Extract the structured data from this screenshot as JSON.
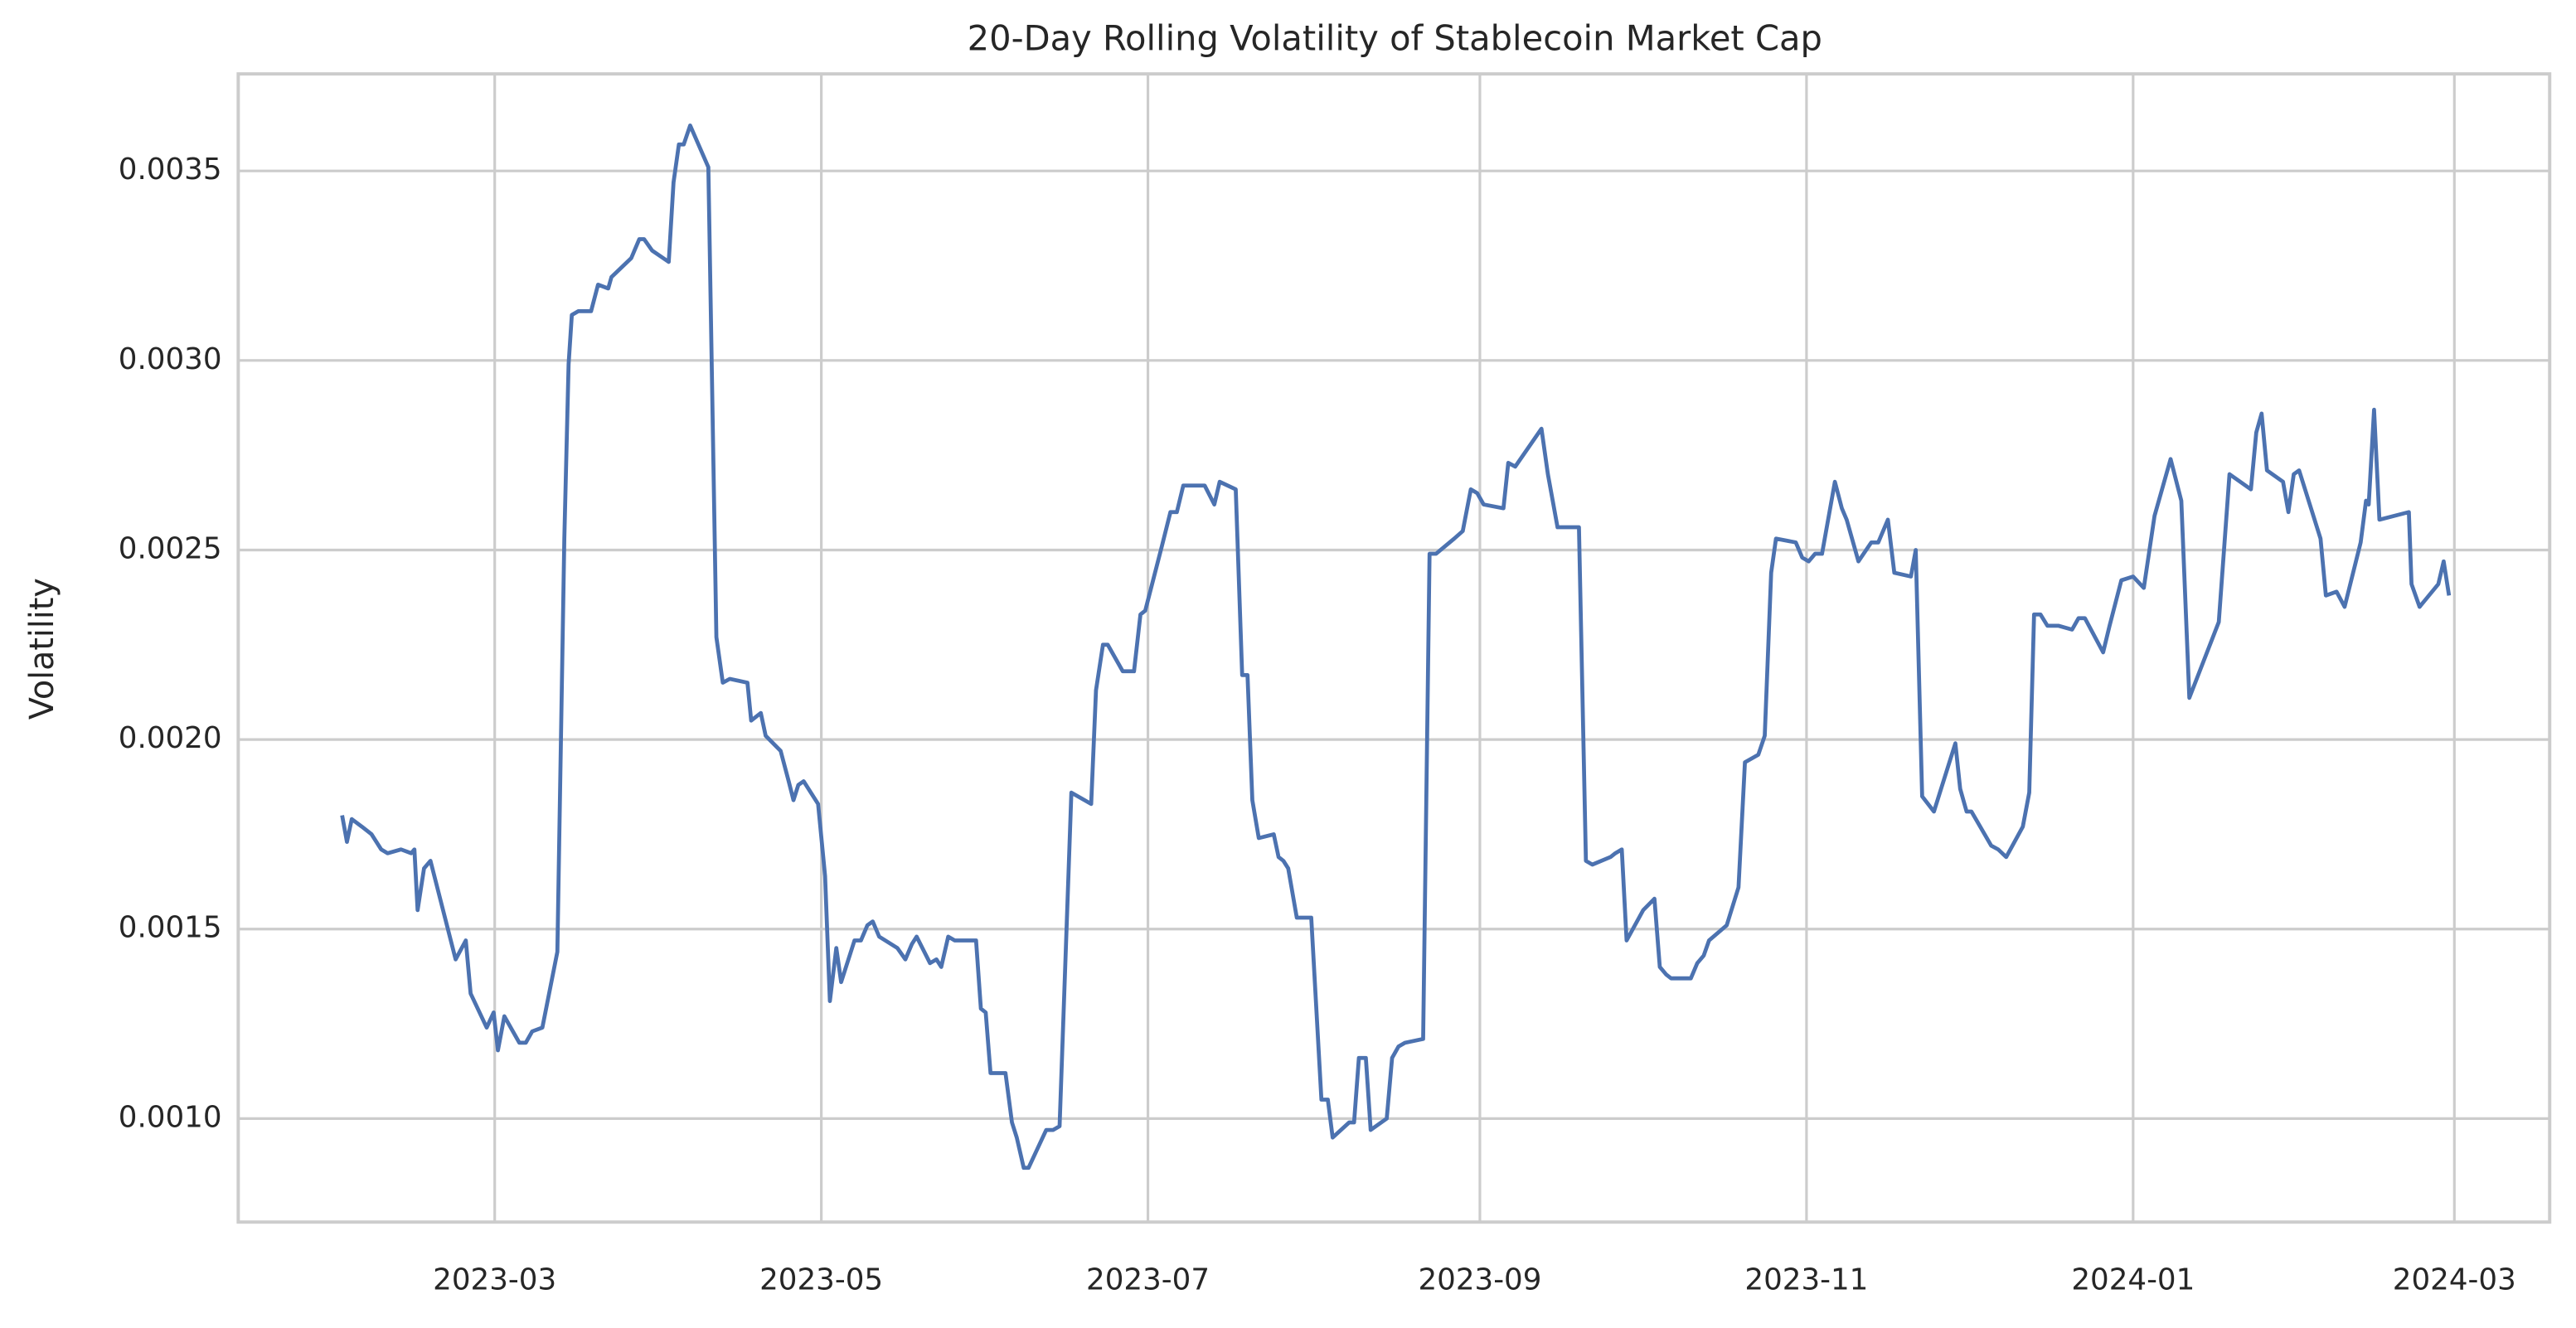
{
  "chart_data": {
    "type": "line",
    "title": "20-Day Rolling Volatility of Stablecoin Market Cap",
    "y_label": "Volatility",
    "color": "#4c72b0",
    "grid": true,
    "xlim": [
      11.1,
      442.8
    ],
    "ylim": [
      0.000727,
      0.003756
    ],
    "xticks": [
      {
        "value": 59,
        "label": "2023-03"
      },
      {
        "value": 120,
        "label": "2023-05"
      },
      {
        "value": 181,
        "label": "2023-07"
      },
      {
        "value": 243,
        "label": "2023-09"
      },
      {
        "value": 304,
        "label": "2023-11"
      },
      {
        "value": 365,
        "label": "2024-01"
      },
      {
        "value": 425,
        "label": "2024-03"
      }
    ],
    "yticks": [
      {
        "value": 0.001,
        "label": "0.0010"
      },
      {
        "value": 0.0015,
        "label": "0.0015"
      },
      {
        "value": 0.002,
        "label": "0.0020"
      },
      {
        "value": 0.0025,
        "label": "0.0025"
      },
      {
        "value": 0.003,
        "label": "0.0030"
      },
      {
        "value": 0.0035,
        "label": "0.0035"
      }
    ],
    "x": [
      30.5,
      31.4,
      32.3,
      34.2,
      36,
      37.8,
      39,
      41.5,
      43.4,
      44,
      44.6,
      45.8,
      47,
      51.7,
      53.6,
      54.5,
      57.5,
      58.8,
      59.6,
      60.8,
      63.6,
      64.8,
      66,
      67.9,
      70.7,
      72,
      72.8,
      73.4,
      74.6,
      77,
      78.3,
      80.2,
      80.8,
      84.5,
      86,
      86.9,
      88.4,
      91.5,
      92.4,
      93.4,
      94.3,
      95.5,
      98.9,
      100.4,
      101.6,
      102.9,
      106.2,
      106.9,
      108.7,
      109.6,
      112.4,
      113.9,
      114.8,
      115.7,
      116.7,
      119.4,
      120.7,
      121.6,
      122.8,
      123.7,
      126.2,
      127.4,
      128.6,
      129.6,
      130.8,
      134.2,
      135.7,
      136.9,
      137.8,
      140.3,
      141.5,
      142.4,
      143.7,
      144.9,
      148.9,
      149.8,
      150.7,
      151.6,
      154.4,
      155.6,
      156.5,
      157.8,
      158.7,
      162,
      163.3,
      164.5,
      166.7,
      170.4,
      171.3,
      172.6,
      173.5,
      176.3,
      178.4,
      179.6,
      180.5,
      183.6,
      185.2,
      186.4,
      187.6,
      191.6,
      193.4,
      194.4,
      197.4,
      198.6,
      199.6,
      200.5,
      201.7,
      204.5,
      205.4,
      206.3,
      207.2,
      208.8,
      211.5,
      213.4,
      214.6,
      215.5,
      218.6,
      219.5,
      220.4,
      221.7,
      222.6,
      225.6,
      226.6,
      227.8,
      229,
      232.4,
      233.6,
      234.8,
      238.2,
      239.8,
      241.3,
      242.5,
      243.7,
      247.4,
      248.3,
      249.6,
      254.5,
      255.7,
      257.5,
      260.6,
      261.5,
      262.8,
      264,
      267.4,
      268.3,
      269.5,
      270.4,
      273.5,
      275.6,
      276.6,
      277.8,
      278.7,
      282.4,
      283.6,
      284.8,
      285.8,
      289.1,
      291.3,
      292.5,
      295,
      296.2,
      297.4,
      298.3,
      302,
      303.2,
      304.4,
      305.6,
      306.9,
      309.3,
      310.6,
      311.5,
      313.7,
      316.1,
      317.4,
      319.2,
      320.4,
      323.5,
      324.4,
      325.6,
      327.8,
      331.8,
      332.7,
      333.9,
      334.8,
      338.5,
      339.8,
      341.3,
      344.4,
      345.6,
      346.5,
      347.7,
      349,
      351.1,
      353.6,
      354.8,
      356,
      359.4,
      360.6,
      362.8,
      365,
      367,
      369,
      372,
      374,
      375.5,
      381,
      383,
      387,
      388,
      389,
      390,
      393,
      394,
      395,
      396,
      400,
      401,
      403,
      404.5,
      407.5,
      408.5,
      409,
      410,
      411,
      416.5,
      417,
      418.5,
      422,
      423,
      424
    ],
    "values": [
      0.0018,
      0.00173,
      0.00179,
      0.00177,
      0.00175,
      0.00171,
      0.0017,
      0.00171,
      0.0017,
      0.00171,
      0.00155,
      0.00166,
      0.00168,
      0.00142,
      0.00147,
      0.00133,
      0.00124,
      0.00128,
      0.00118,
      0.00127,
      0.0012,
      0.0012,
      0.00123,
      0.00124,
      0.00144,
      0.00253,
      0.00299,
      0.00312,
      0.00313,
      0.00313,
      0.0032,
      0.00319,
      0.00322,
      0.00327,
      0.00332,
      0.00332,
      0.00329,
      0.00326,
      0.00347,
      0.00357,
      0.00357,
      0.00362,
      0.00351,
      0.00227,
      0.00215,
      0.00216,
      0.00215,
      0.00205,
      0.00207,
      0.00201,
      0.00197,
      0.00189,
      0.00184,
      0.00188,
      0.00189,
      0.00183,
      0.00164,
      0.00131,
      0.00145,
      0.00136,
      0.00147,
      0.00147,
      0.00151,
      0.00152,
      0.00148,
      0.00145,
      0.00142,
      0.00146,
      0.00148,
      0.00141,
      0.00142,
      0.0014,
      0.00148,
      0.00147,
      0.00147,
      0.00129,
      0.00128,
      0.00112,
      0.00112,
      0.00099,
      0.00095,
      0.00087,
      0.00087,
      0.00097,
      0.00097,
      0.00098,
      0.00186,
      0.00183,
      0.00213,
      0.00225,
      0.00225,
      0.00218,
      0.00218,
      0.00233,
      0.00234,
      0.00251,
      0.0026,
      0.0026,
      0.00267,
      0.00267,
      0.00262,
      0.00268,
      0.00266,
      0.00217,
      0.00217,
      0.00184,
      0.00174,
      0.00175,
      0.00169,
      0.00168,
      0.00166,
      0.00153,
      0.00153,
      0.00105,
      0.00105,
      0.00095,
      0.00099,
      0.00099,
      0.00116,
      0.00116,
      0.00097,
      0.001,
      0.00116,
      0.00119,
      0.0012,
      0.00121,
      0.00249,
      0.00249,
      0.00253,
      0.00255,
      0.00266,
      0.00265,
      0.00262,
      0.00261,
      0.00273,
      0.00272,
      0.00282,
      0.0027,
      0.00256,
      0.00256,
      0.00256,
      0.00168,
      0.00167,
      0.00169,
      0.0017,
      0.00171,
      0.00147,
      0.00155,
      0.00158,
      0.0014,
      0.00138,
      0.00137,
      0.00137,
      0.00141,
      0.00143,
      0.00147,
      0.00151,
      0.00161,
      0.00194,
      0.00196,
      0.00201,
      0.00244,
      0.00253,
      0.00252,
      0.00248,
      0.00247,
      0.00249,
      0.00249,
      0.00268,
      0.00261,
      0.00258,
      0.00247,
      0.00252,
      0.00252,
      0.00258,
      0.00244,
      0.00243,
      0.0025,
      0.00185,
      0.00181,
      0.00199,
      0.00187,
      0.00181,
      0.00181,
      0.00172,
      0.00171,
      0.00169,
      0.00177,
      0.00186,
      0.00233,
      0.00233,
      0.0023,
      0.0023,
      0.00229,
      0.00232,
      0.00232,
      0.00223,
      0.0023,
      0.00242,
      0.00243,
      0.0024,
      0.00259,
      0.00274,
      0.00263,
      0.00211,
      0.00231,
      0.0027,
      0.00266,
      0.00281,
      0.00286,
      0.00271,
      0.00268,
      0.0026,
      0.0027,
      0.00271,
      0.00253,
      0.00238,
      0.00239,
      0.00235,
      0.00252,
      0.00263,
      0.00262,
      0.00287,
      0.00258,
      0.0026,
      0.00241,
      0.00235,
      0.00241,
      0.00247,
      0.00238
    ]
  }
}
